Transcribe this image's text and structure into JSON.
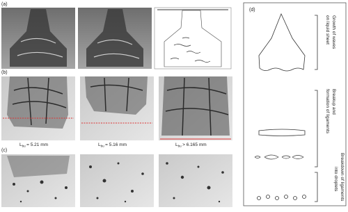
{
  "panels": {
    "a": "(a)",
    "b": "(b)",
    "c": "(c)",
    "d": "(d)"
  },
  "breakup_lengths": [
    {
      "symbol": "L",
      "subscript": "bu",
      "value": "= 5.21 mm"
    },
    {
      "symbol": "L",
      "subscript": "bu",
      "value": "= 5.16 mm"
    },
    {
      "symbol": "L",
      "subscript": "bu",
      "value": "> 6.165 mm"
    }
  ],
  "stages": [
    {
      "lines": [
        "Growth of waves",
        "on liquid sheet"
      ]
    },
    {
      "lines": [
        "Breakup and",
        "formation of ligaments"
      ]
    },
    {
      "lines": [
        "Breakdown of ligaments",
        "into droplets"
      ]
    }
  ]
}
